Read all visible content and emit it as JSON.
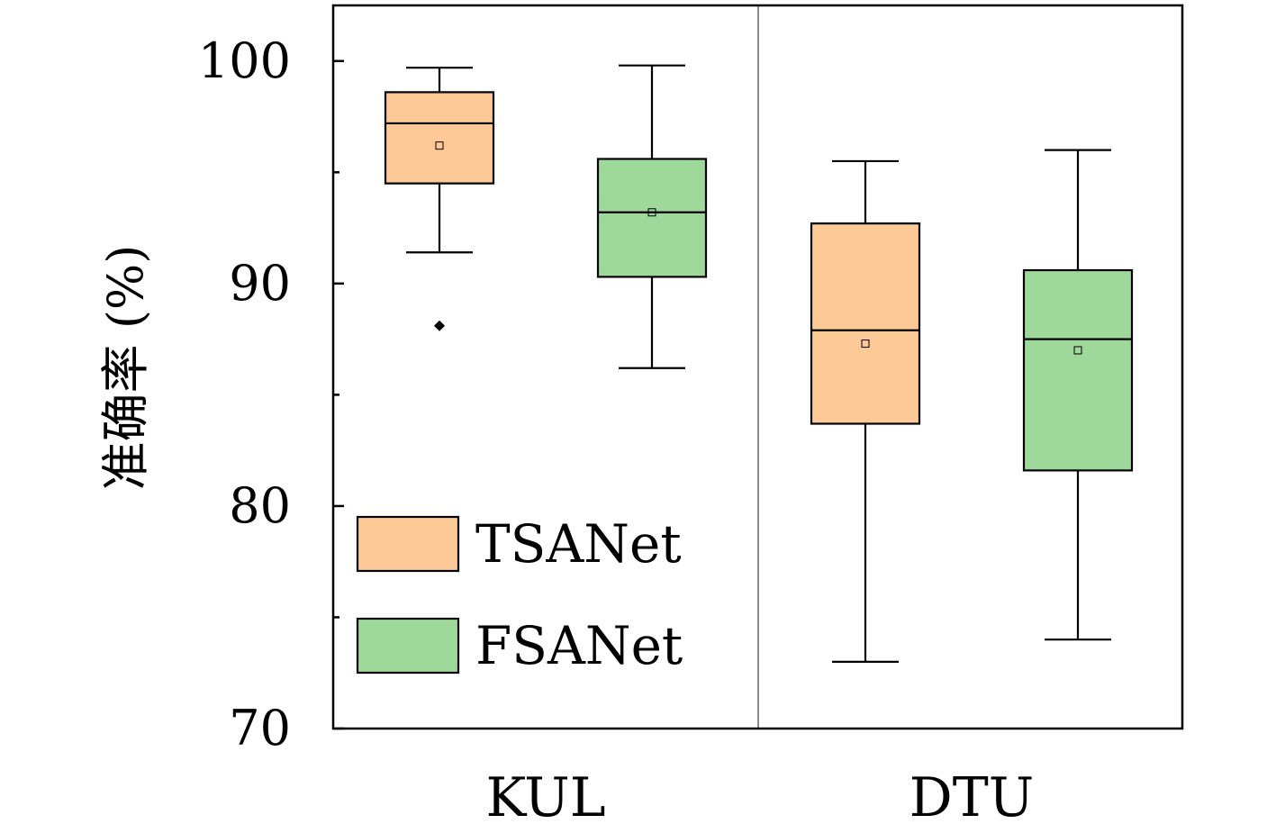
{
  "chart_data": {
    "type": "box",
    "ylabel": "准确率 (%)",
    "ylim": [
      70,
      102.5
    ],
    "yticks": [
      70,
      80,
      90,
      100
    ],
    "yminor_ticks": [
      75,
      85,
      95
    ],
    "categories": [
      "KUL",
      "DTU"
    ],
    "series": [
      {
        "name": "TSANet",
        "color": "#fdc997",
        "boxes": [
          {
            "category": "KUL",
            "whisker_low": 91.4,
            "q1": 94.5,
            "median": 97.2,
            "q3": 98.6,
            "whisker_high": 99.7,
            "mean": 96.2,
            "outliers": [
              88.1
            ]
          },
          {
            "category": "DTU",
            "whisker_low": 73.0,
            "q1": 83.7,
            "median": 87.9,
            "q3": 92.7,
            "whisker_high": 95.5,
            "mean": 87.3,
            "outliers": []
          }
        ]
      },
      {
        "name": "FSANet",
        "color": "#9fd89b",
        "boxes": [
          {
            "category": "KUL",
            "whisker_low": 86.2,
            "q1": 90.3,
            "median": 93.2,
            "q3": 95.6,
            "whisker_high": 99.8,
            "mean": 93.2,
            "outliers": []
          },
          {
            "category": "DTU",
            "whisker_low": 74.0,
            "q1": 81.6,
            "median": 87.5,
            "q3": 90.6,
            "whisker_high": 96.0,
            "mean": 87.0,
            "outliers": []
          }
        ]
      }
    ],
    "legend_position": "bottom-left",
    "grid": false
  }
}
